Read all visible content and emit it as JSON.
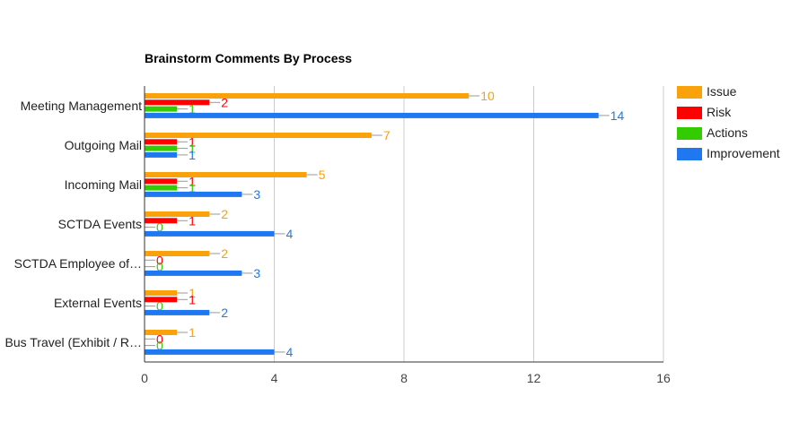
{
  "chart_data": {
    "type": "bar",
    "orientation": "horizontal",
    "title": "Brainstorm Comments By Process",
    "xlabel": "",
    "ylabel": "",
    "categories": [
      "Meeting Management",
      "Outgoing Mail",
      "Incoming Mail",
      "SCTDA Events",
      "SCTDA Employee of…",
      "External Events",
      "Bus Travel (Exhibit / R…"
    ],
    "series": [
      {
        "name": "Issue",
        "color": "#f9a20b",
        "values": [
          10,
          7,
          5,
          2,
          2,
          1,
          1
        ]
      },
      {
        "name": "Risk",
        "color": "#ff0000",
        "values": [
          2,
          1,
          1,
          1,
          0,
          1,
          0
        ]
      },
      {
        "name": "Actions",
        "color": "#33cc00",
        "values": [
          1,
          1,
          1,
          0,
          0,
          0,
          0
        ]
      },
      {
        "name": "Improvement",
        "color": "#1f78f0",
        "values": [
          14,
          1,
          3,
          4,
          3,
          2,
          4
        ]
      }
    ],
    "xlim": [
      0,
      16
    ],
    "ticks": [
      0,
      4,
      8,
      12,
      16
    ],
    "grid": true,
    "legend_position": "right"
  }
}
